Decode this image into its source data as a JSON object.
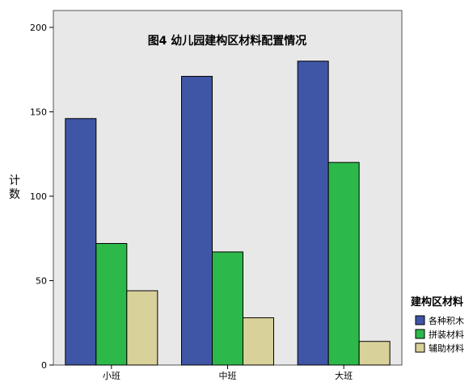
{
  "chart_data": {
    "type": "bar",
    "title": "图4  幼儿园建构区材料配置情况",
    "xlabel": "",
    "ylabel": "计数",
    "ylim": [
      0,
      210
    ],
    "yticks": [
      0,
      50,
      100,
      150,
      200
    ],
    "categories": [
      "小班",
      "中班",
      "大班"
    ],
    "legend_title": "建构区材料",
    "legend_position": "right",
    "grid": false,
    "background": "#e8e8e8",
    "series": [
      {
        "name": "各种积木",
        "color": "#3f55a5",
        "values": [
          146,
          171,
          180
        ]
      },
      {
        "name": "拼装材料",
        "color": "#2db84a",
        "values": [
          72,
          67,
          120
        ]
      },
      {
        "name": "辅助材料",
        "color": "#d8d19a",
        "values": [
          44,
          28,
          14
        ]
      }
    ]
  }
}
